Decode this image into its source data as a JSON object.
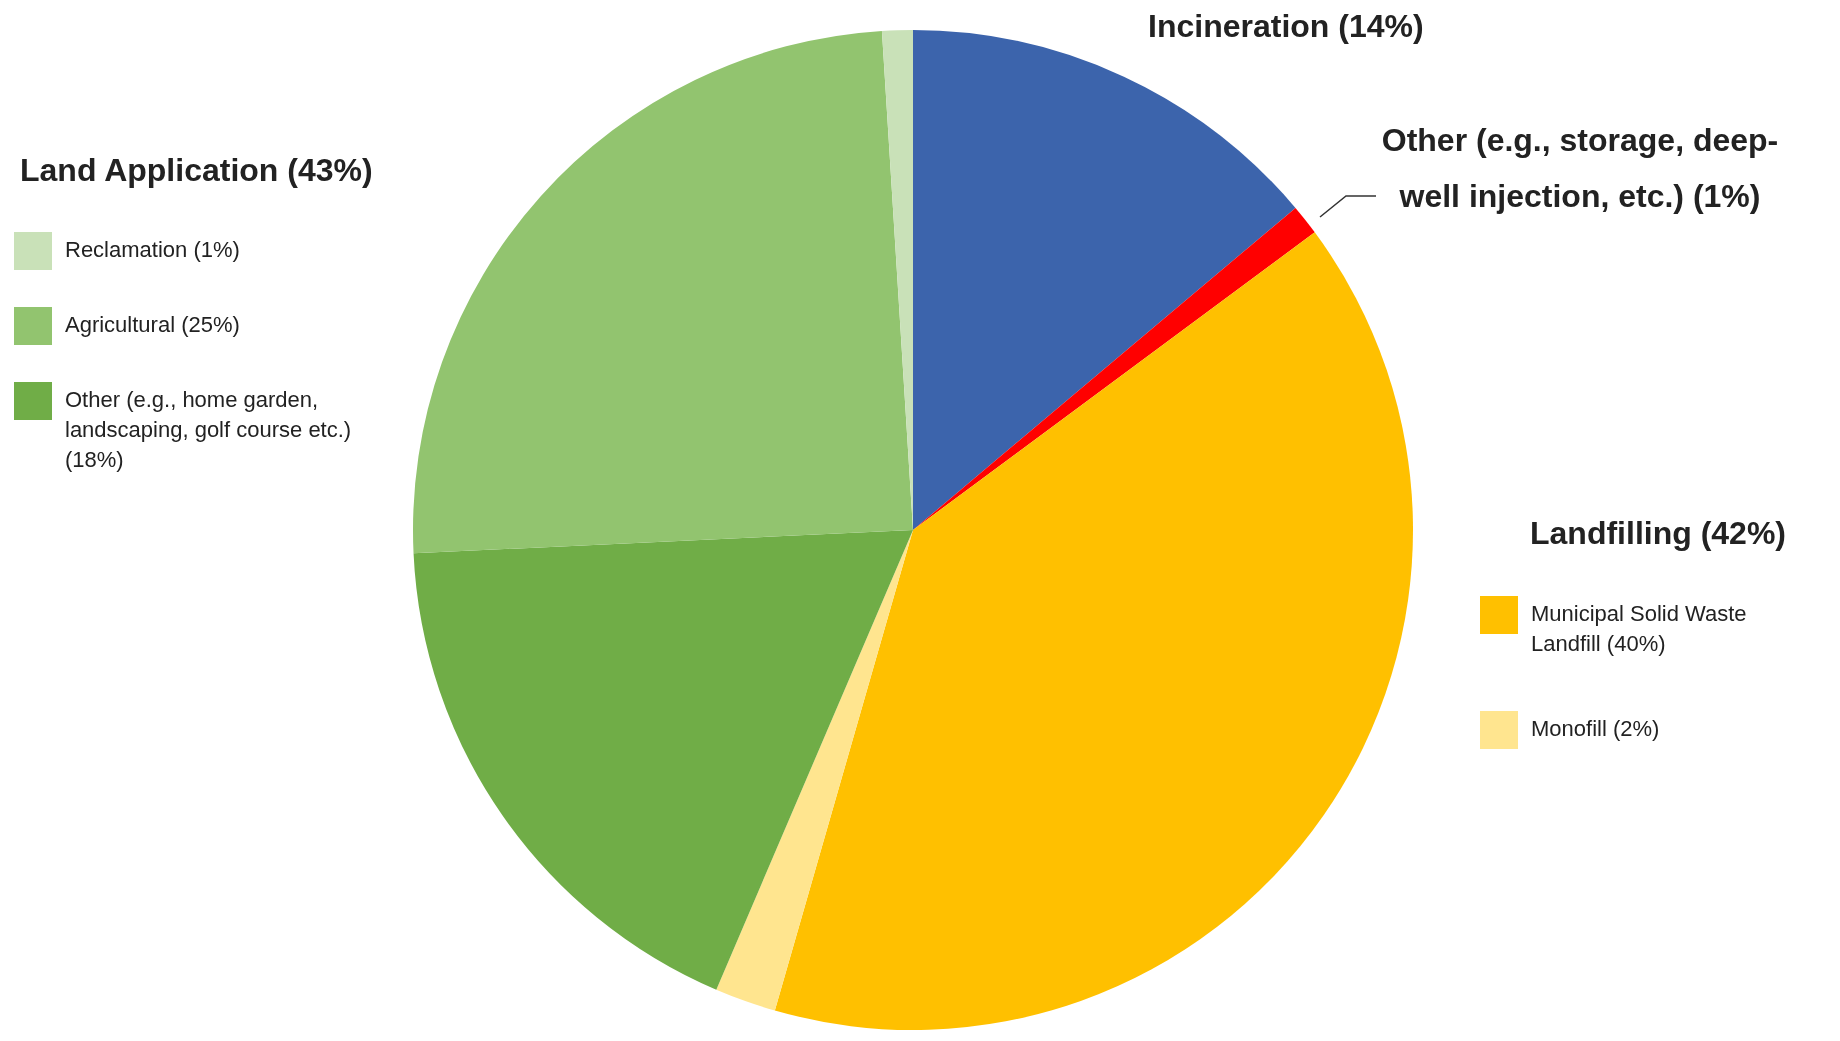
{
  "chart_data": {
    "type": "pie",
    "categories": [
      "Incineration (14%)",
      "Other (e.g., storage, deep-well injection, etc.) (1%)",
      "Municipal Solid Waste Landfill (40%)",
      "Monofill (2%)",
      "Other (e.g., home garden, landscaping, golf course etc.) (18%)",
      "Agricultural (25%)",
      "Reclamation (1%)"
    ],
    "values": [
      14,
      1,
      40,
      2,
      18,
      25,
      1
    ],
    "colors": [
      "#3c64ac",
      "#ff0000",
      "#ffc000",
      "#ffe58f",
      "#70ad47",
      "#92c46f",
      "#c9e1b8"
    ],
    "annotations": [
      "Land Application (43%)",
      "Landfilling (42%)"
    ],
    "legend": "left"
  }
}
